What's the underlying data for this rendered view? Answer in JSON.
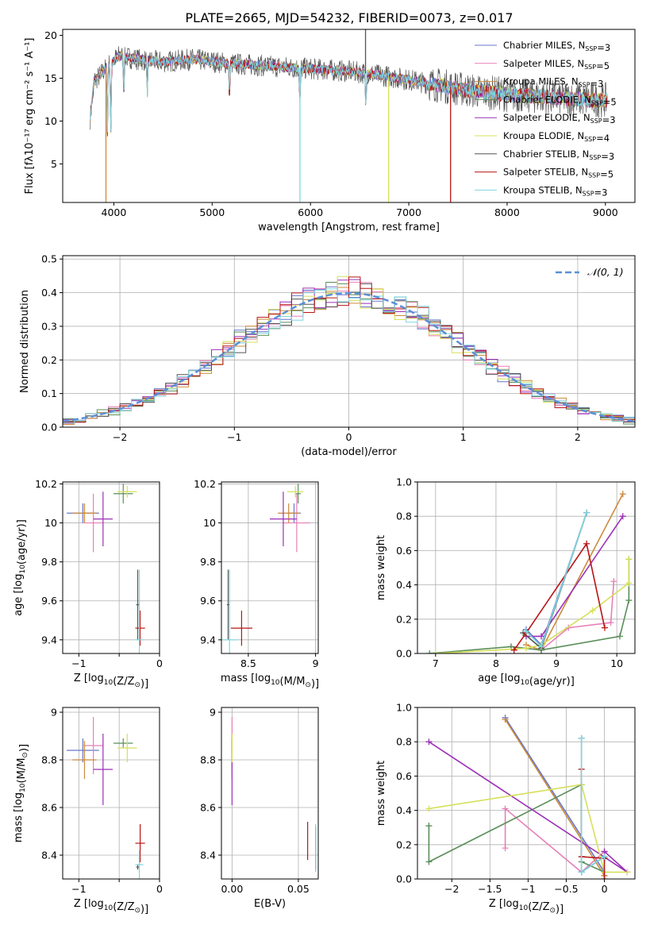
{
  "figure_title": "PLATE=2665, MJD=54232, FIBERID=0073, z=0.017",
  "series_colors": [
    "#6677cc",
    "#e87fb8",
    "#cc8a3a",
    "#5a8f5a",
    "#9b30b8",
    "#d6e05a",
    "#555555",
    "#b81515",
    "#7fd6e0"
  ],
  "chart_data": [
    {
      "type": "line",
      "title": "PLATE=2665, MJD=54232, FIBERID=0073, z=0.017",
      "xlabel": "wavelength [Angstrom, rest frame]",
      "ylabel": "Flux [fλ10⁻¹⁷ erg cm⁻² s⁻¹ A⁻¹]",
      "xlim": [
        3480,
        9300
      ],
      "ylim": [
        0.5,
        20.7
      ],
      "xticks": [
        4000,
        5000,
        6000,
        7000,
        8000,
        9000
      ],
      "yticks": [
        5,
        10,
        15,
        20
      ],
      "grid": false,
      "legend_position": "top-right",
      "legend": [
        "Chabrier MILES, N_SSP=3",
        "Salpeter MILES, N_SSP=5",
        "Kroupa MILES, N_SSP=3",
        "Chabrier ELODIE, N_SSP=5",
        "Salpeter ELODIE, N_SSP=3",
        "Kroupa ELODIE, N_SSP=4",
        "Chabrier STELIB, N_SSP=3",
        "Salpeter STELIB, N_SSP=5",
        "Kroupa STELIB, N_SSP=3"
      ],
      "continuum": {
        "x": [
          3750,
          3850,
          3950,
          4050,
          4150,
          4300,
          4500,
          4800,
          5200,
          5600,
          6000,
          6400,
          6800,
          7200,
          7600,
          8000,
          8400,
          8800,
          9050
        ],
        "y": [
          14.2,
          15.2,
          16.6,
          17.6,
          17.4,
          17.1,
          16.9,
          17.2,
          16.7,
          16.4,
          16.1,
          15.8,
          15.2,
          14.4,
          13.6,
          13.1,
          12.8,
          12.5,
          12.4
        ]
      },
      "absorption_lines": [
        3934,
        3969,
        4101,
        4340,
        5176,
        5892,
        6563
      ],
      "spikes": [
        {
          "x": 3920,
          "y": 0.5,
          "series": "Kroupa MILES"
        },
        {
          "x": 5893,
          "y": 0.5,
          "series": "Kroupa STELIB"
        },
        {
          "x": 6795,
          "y": 0.5,
          "series": "Kroupa ELODIE"
        },
        {
          "x": 7425,
          "y": 0.5,
          "series": "Salpeter STELIB"
        },
        {
          "x": 6560,
          "y": 20.7,
          "series": "Chabrier STELIB"
        }
      ]
    },
    {
      "type": "histogram",
      "xlabel": "(data-model)/error",
      "ylabel": "Normed distribution",
      "xlim": [
        -2.5,
        2.5
      ],
      "ylim": [
        0,
        0.51
      ],
      "xticks": [
        -2,
        -1,
        0,
        1,
        2
      ],
      "yticks": [
        0.0,
        0.1,
        0.2,
        0.3,
        0.4,
        0.5
      ],
      "grid": true,
      "legend_position": "top-right",
      "legend": [
        "𝒩(0, 1)"
      ],
      "bin_width": 0.1,
      "reference_curve": {
        "name": "𝒩(0, 1)",
        "mean": 0,
        "sigma": 1,
        "style": "dashed"
      }
    },
    {
      "type": "scatter",
      "xlabel": "Z [log10(Z/Z⊙)]",
      "ylabel": "age  [log10(age/yr)]",
      "xlim": [
        -1.2,
        0
      ],
      "ylim": [
        9.33,
        10.21
      ],
      "xticks": [
        -1,
        -0.5,
        0
      ],
      "xticklabels": [
        "−1",
        "",
        "0"
      ],
      "yticks": [
        9.4,
        9.6,
        9.8,
        10.0,
        10.2
      ],
      "grid": true,
      "points": [
        {
          "series": "Chabrier MILES",
          "x": -0.95,
          "y": 10.05,
          "xerr": 0.2,
          "yerr": 0.05
        },
        {
          "series": "Salpeter MILES",
          "x": -0.82,
          "y": 10.0,
          "xerr": 0.12,
          "yerr": 0.15
        },
        {
          "series": "Kroupa MILES",
          "x": -0.93,
          "y": 10.05,
          "xerr": 0.15,
          "yerr": 0.05
        },
        {
          "series": "Chabrier ELODIE",
          "x": -0.45,
          "y": 10.15,
          "xerr": 0.12,
          "yerr": 0.05
        },
        {
          "series": "Salpeter ELODIE",
          "x": -0.7,
          "y": 10.02,
          "xerr": 0.12,
          "yerr": 0.14
        },
        {
          "series": "Kroupa ELODIE",
          "x": -0.4,
          "y": 10.16,
          "xerr": 0.12,
          "yerr": 0.03
        },
        {
          "series": "Chabrier STELIB",
          "x": -0.27,
          "y": 9.58,
          "xerr": 0.02,
          "yerr": 0.18
        },
        {
          "series": "Salpeter STELIB",
          "x": -0.24,
          "y": 9.46,
          "xerr": 0.06,
          "yerr": 0.09
        },
        {
          "series": "Kroupa STELIB",
          "x": -0.25,
          "y": 9.4,
          "xerr": 0.05,
          "yerr": 0.36
        }
      ]
    },
    {
      "type": "scatter",
      "xlabel": "mass [log10(M/M⊙)]",
      "ylabel": "",
      "xlim": [
        8.3,
        9.02
      ],
      "ylim": [
        9.33,
        10.21
      ],
      "xticks": [
        8.5,
        9.0
      ],
      "yticks": [
        9.4,
        9.6,
        9.8,
        10.0,
        10.2
      ],
      "grid": true,
      "points": [
        {
          "series": "Chabrier MILES",
          "x": 8.84,
          "y": 10.05,
          "xerr": 0.05,
          "yerr": 0.05
        },
        {
          "series": "Salpeter MILES",
          "x": 8.86,
          "y": 10.0,
          "xerr": 0.1,
          "yerr": 0.15
        },
        {
          "series": "Kroupa MILES",
          "x": 8.8,
          "y": 10.05,
          "xerr": 0.08,
          "yerr": 0.05
        },
        {
          "series": "Chabrier ELODIE",
          "x": 8.87,
          "y": 10.15,
          "xerr": 0.02,
          "yerr": 0.05
        },
        {
          "series": "Salpeter ELODIE",
          "x": 8.76,
          "y": 10.02,
          "xerr": 0.1,
          "yerr": 0.14
        },
        {
          "series": "Kroupa ELODIE",
          "x": 8.85,
          "y": 10.16,
          "xerr": 0.06,
          "yerr": 0.03
        },
        {
          "series": "Chabrier STELIB",
          "x": 8.35,
          "y": 9.58,
          "xerr": 0.01,
          "yerr": 0.18
        },
        {
          "series": "Salpeter STELIB",
          "x": 8.45,
          "y": 9.46,
          "xerr": 0.08,
          "yerr": 0.09
        },
        {
          "series": "Kroupa STELIB",
          "x": 8.36,
          "y": 9.4,
          "xerr": 0.06,
          "yerr": 0.36
        }
      ]
    },
    {
      "type": "line",
      "xlabel": "age  [log10(age/yr)]",
      "ylabel": "mass weight",
      "xlim": [
        6.7,
        10.3
      ],
      "ylim": [
        0,
        1.0
      ],
      "xticks": [
        7,
        8,
        9,
        10
      ],
      "yticks": [
        0.0,
        0.2,
        0.4,
        0.6,
        0.8,
        1.0
      ],
      "grid": true,
      "series": [
        {
          "name": "Chabrier MILES",
          "x": [
            8.5,
            8.75,
            9.5
          ],
          "y": [
            0.14,
            0.05,
            0.82
          ]
        },
        {
          "name": "Salpeter MILES",
          "x": [
            8.25,
            8.75,
            9.2,
            9.9,
            9.95
          ],
          "y": [
            0.04,
            0.02,
            0.15,
            0.18,
            0.42
          ]
        },
        {
          "name": "Kroupa MILES",
          "x": [
            8.5,
            8.75,
            10.1
          ],
          "y": [
            0.05,
            0.02,
            0.93
          ]
        },
        {
          "name": "Chabrier ELODIE",
          "x": [
            6.9,
            8.25,
            8.75,
            10.05,
            10.2,
            10.2
          ],
          "y": [
            0.0,
            0.04,
            0.02,
            0.1,
            0.31,
            0.55
          ]
        },
        {
          "name": "Salpeter ELODIE",
          "x": [
            8.5,
            8.75,
            10.1
          ],
          "y": [
            0.1,
            0.1,
            0.8
          ]
        },
        {
          "name": "Kroupa ELODIE",
          "x": [
            7.0,
            8.5,
            8.75,
            9.6,
            10.2,
            10.2
          ],
          "y": [
            0.0,
            0.03,
            0.05,
            0.25,
            0.41,
            0.55
          ]
        },
        {
          "name": "Chabrier STELIB",
          "x": [
            8.45,
            8.75,
            9.5
          ],
          "y": [
            0.12,
            0.03,
            0.82
          ]
        },
        {
          "name": "Salpeter STELIB",
          "x": [
            8.3,
            8.5,
            9.5,
            9.8
          ],
          "y": [
            0.02,
            0.12,
            0.64,
            0.15
          ]
        },
        {
          "name": "Kroupa STELIB",
          "x": [
            8.5,
            8.75,
            9.5
          ],
          "y": [
            0.13,
            0.04,
            0.82
          ]
        }
      ]
    },
    {
      "type": "scatter",
      "xlabel": "Z [log10(Z/Z⊙)]",
      "ylabel": "mass [log10(M/M⊙)]",
      "xlim": [
        -1.2,
        0
      ],
      "ylim": [
        8.3,
        9.02
      ],
      "xticks": [
        -1,
        -0.5,
        0
      ],
      "xticklabels": [
        "−1",
        "",
        "0"
      ],
      "yticks": [
        8.4,
        8.6,
        8.8,
        9.0
      ],
      "grid": true,
      "points": [
        {
          "series": "Chabrier MILES",
          "x": -0.95,
          "y": 8.84,
          "xerr": 0.2,
          "yerr": 0.05
        },
        {
          "series": "Salpeter MILES",
          "x": -0.82,
          "y": 8.86,
          "xerr": 0.12,
          "yerr": 0.12
        },
        {
          "series": "Kroupa MILES",
          "x": -0.93,
          "y": 8.8,
          "xerr": 0.15,
          "yerr": 0.08
        },
        {
          "series": "Chabrier ELODIE",
          "x": -0.45,
          "y": 8.87,
          "xerr": 0.12,
          "yerr": 0.02
        },
        {
          "series": "Salpeter ELODIE",
          "x": -0.7,
          "y": 8.76,
          "xerr": 0.12,
          "yerr": 0.15
        },
        {
          "series": "Kroupa ELODIE",
          "x": -0.4,
          "y": 8.85,
          "xerr": 0.12,
          "yerr": 0.06
        },
        {
          "series": "Chabrier STELIB",
          "x": -0.27,
          "y": 8.35,
          "xerr": 0.02,
          "yerr": 0.01
        },
        {
          "series": "Salpeter STELIB",
          "x": -0.24,
          "y": 8.45,
          "xerr": 0.06,
          "yerr": 0.08
        },
        {
          "series": "Kroupa STELIB",
          "x": -0.25,
          "y": 8.36,
          "xerr": 0.05,
          "yerr": 0.06
        }
      ]
    },
    {
      "type": "scatter",
      "xlabel": "E(B-V)",
      "ylabel": "",
      "xlim": [
        -0.008,
        0.065
      ],
      "ylim": [
        8.3,
        9.02
      ],
      "xticks": [
        0.0,
        0.05
      ],
      "xticklabels": [
        "0.00",
        "0.05"
      ],
      "yticks": [
        8.4,
        8.6,
        8.8,
        9.0
      ],
      "grid": true,
      "points": [
        {
          "series": "Chabrier MILES",
          "x": 0.0,
          "y": 8.84,
          "yerr": 0.05
        },
        {
          "series": "Salpeter MILES",
          "x": 0.0,
          "y": 8.86,
          "yerr": 0.12
        },
        {
          "series": "Kroupa MILES",
          "x": 0.0,
          "y": 8.8,
          "yerr": 0.08
        },
        {
          "series": "Chabrier ELODIE",
          "x": 0.0,
          "y": 8.87,
          "yerr": 0.02
        },
        {
          "series": "Salpeter ELODIE",
          "x": 0.0,
          "y": 8.76,
          "yerr": 0.15
        },
        {
          "series": "Kroupa ELODIE",
          "x": 0.0,
          "y": 8.85,
          "yerr": 0.06
        },
        {
          "series": "Chabrier STELIB",
          "x": 0.063,
          "y": 8.43,
          "yerr": 0.09
        },
        {
          "series": "Salpeter STELIB",
          "x": 0.057,
          "y": 8.46,
          "yerr": 0.08
        },
        {
          "series": "Kroupa STELIB",
          "x": 0.063,
          "y": 8.43,
          "yerr": 0.1
        }
      ]
    },
    {
      "type": "line",
      "xlabel": "Z [log10(Z/Z⊙)]",
      "ylabel": "mass weight",
      "xlim": [
        -2.45,
        0.4
      ],
      "ylim": [
        0,
        1.0
      ],
      "xticks": [
        -2.0,
        -1.5,
        -1.0,
        -0.5,
        0.0
      ],
      "yticks": [
        0.0,
        0.2,
        0.4,
        0.6,
        0.8,
        1.0
      ],
      "grid": true,
      "series": [
        {
          "name": "Chabrier MILES",
          "x": [
            -1.3,
            0.0,
            0.0
          ],
          "y": [
            0.94,
            0.04,
            0.02
          ]
        },
        {
          "name": "Salpeter MILES",
          "x": [
            -1.3,
            -1.3,
            -0.3,
            0.0
          ],
          "y": [
            0.18,
            0.41,
            0.04,
            0.16
          ]
        },
        {
          "name": "Kroupa MILES",
          "x": [
            -1.3,
            0.0
          ],
          "y": [
            0.93,
            0.02
          ]
        },
        {
          "name": "Chabrier ELODIE",
          "x": [
            -2.3,
            -2.3,
            -0.3,
            -0.3,
            0.0
          ],
          "y": [
            0.31,
            0.1,
            0.55,
            0.1,
            0.04
          ]
        },
        {
          "name": "Salpeter ELODIE",
          "x": [
            -2.3,
            0.3,
            0.0
          ],
          "y": [
            0.8,
            0.04,
            0.16
          ]
        },
        {
          "name": "Kroupa ELODIE",
          "x": [
            -2.3,
            -0.3,
            0.0,
            0.3
          ],
          "y": [
            0.41,
            0.55,
            0.04,
            0.04
          ]
        },
        {
          "name": "Chabrier STELIB",
          "x": [
            -0.3,
            -0.3,
            0.0
          ],
          "y": [
            0.82,
            0.04,
            0.13
          ]
        },
        {
          "name": "Salpeter STELIB",
          "x": [
            -0.3,
            -0.3,
            0.0,
            0.0
          ],
          "y": [
            0.64,
            0.13,
            0.12,
            0.0
          ]
        },
        {
          "name": "Kroupa STELIB",
          "x": [
            -0.3,
            -0.3,
            0.0
          ],
          "y": [
            0.82,
            0.04,
            0.13
          ]
        }
      ]
    }
  ]
}
